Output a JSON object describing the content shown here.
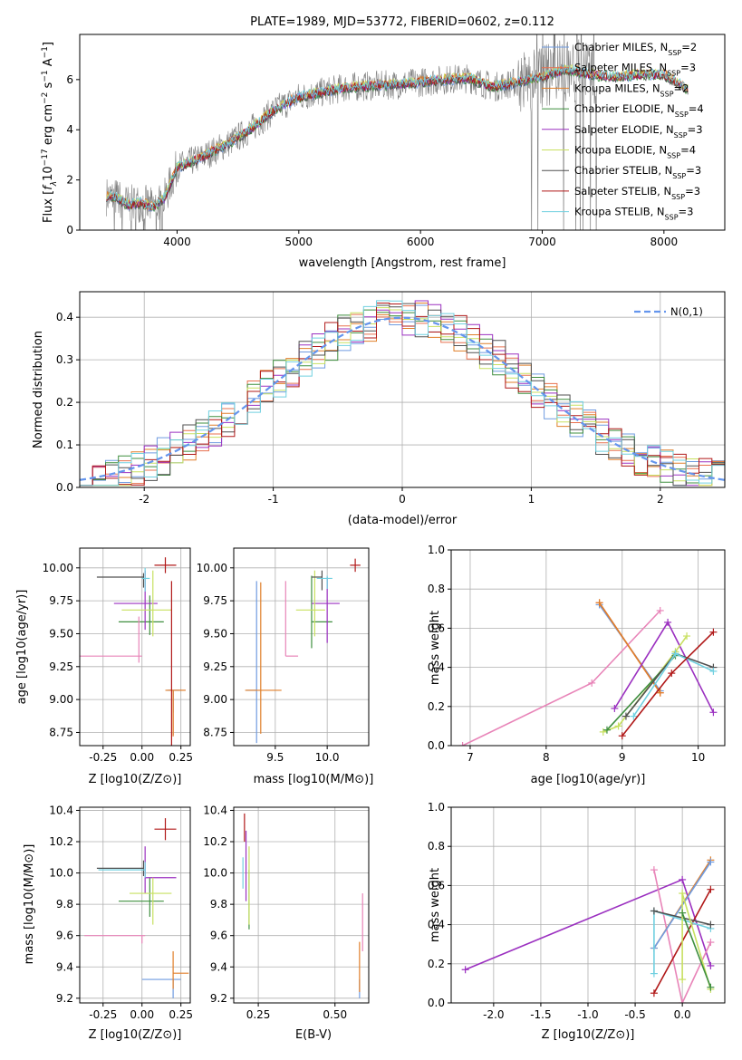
{
  "title": "PLATE=1989, MJD=53772, FIBERID=0602, z=0.112",
  "colors": {
    "Chabrier MILES": "#6f9be0",
    "Salpeter MILES": "#e8704f",
    "Kroupa MILES": "#e07f2a",
    "Chabrier ELODIE": "#3f8f3f",
    "Salpeter ELODIE": "#9b30c0",
    "Kroupa ELODIE": "#c8e060",
    "Chabrier STELIB": "#505050",
    "Salpeter STELIB": "#b01818",
    "Kroupa STELIB": "#70d0e0",
    "data": "#7f7f7f",
    "pink": "#e884b8",
    "gaussian": "#6495ed"
  },
  "chart_data": [
    {
      "id": "spectrum",
      "type": "line",
      "title": "PLATE=1989, MJD=53772, FIBERID=0602, z=0.112",
      "xlabel": "wavelength [Angstrom, rest frame]",
      "ylabel": "Flux [f_λ 10^-17 erg cm^-2 s^-1 A^-1]",
      "xlim": [
        3200,
        8500
      ],
      "ylim": [
        0,
        7.8
      ],
      "xticks": [
        4000,
        5000,
        6000,
        7000,
        8000
      ],
      "yticks": [
        0,
        2,
        4,
        6
      ],
      "legend_position": "right",
      "legend": [
        "Chabrier MILES, N_SSP=2",
        "Salpeter MILES, N_SSP=3",
        "Kroupa MILES, N_SSP=2",
        "Chabrier ELODIE, N_SSP=4",
        "Salpeter ELODIE, N_SSP=3",
        "Kroupa ELODIE, N_SSP=4",
        "Chabrier STELIB, N_SSP=3",
        "Salpeter STELIB, N_SSP=3",
        "Kroupa STELIB, N_SSP=3"
      ],
      "continuum_knots": {
        "x": [
          3420,
          3500,
          3600,
          3700,
          3800,
          3900,
          4000,
          4200,
          4400,
          4600,
          4800,
          5000,
          5200,
          5400,
          5600,
          5800,
          6000,
          6200,
          6400,
          6600,
          6800,
          7000,
          7200,
          7400,
          7600,
          7800,
          8000,
          8200
        ],
        "y": [
          1.35,
          1.3,
          1.0,
          1.1,
          0.9,
          1.3,
          2.5,
          2.9,
          3.4,
          4.0,
          4.8,
          5.3,
          5.5,
          5.7,
          5.75,
          5.8,
          5.9,
          6.0,
          6.05,
          5.7,
          5.9,
          6.1,
          6.4,
          6.2,
          6.1,
          6.2,
          6.2,
          5.6
        ]
      }
    },
    {
      "id": "residual-histogram",
      "type": "histogram",
      "xlabel": "(data-model)/error",
      "ylabel": "Normed distribution",
      "xlim": [
        -2.5,
        2.5
      ],
      "ylim": [
        0,
        0.46
      ],
      "xticks": [
        -2,
        -1,
        0,
        1,
        2
      ],
      "yticks": [
        0.0,
        0.1,
        0.2,
        0.3,
        0.4
      ],
      "reference_curve": "N(0,1)",
      "legend_position": "top-right",
      "bin_width": 0.1,
      "bins_from": -2.5
    },
    {
      "id": "age-vs-Z",
      "type": "scatter",
      "xlabel": "Z [log10(Z/Z⊙)]",
      "ylabel": "age [log10(age/yr)]",
      "xlim": [
        -0.4,
        0.31
      ],
      "ylim": [
        8.65,
        10.15
      ],
      "xticks": [
        -0.25,
        0.0,
        0.25
      ],
      "yticks": [
        8.75,
        9.0,
        9.25,
        9.5,
        9.75,
        10.0
      ],
      "points": [
        {
          "name": "Chabrier MILES",
          "x": 0.2,
          "y": 9.07,
          "xerr": [
            0.04,
            0.04
          ],
          "yerr": [
            0.17,
            0.0
          ]
        },
        {
          "name": "Salpeter MILES",
          "x": 0.2,
          "y": 9.07,
          "xerr": [
            0.03,
            0.08
          ],
          "yerr": [
            0.34,
            0.0
          ]
        },
        {
          "name": "Kroupa MILES",
          "x": 0.2,
          "y": 9.07,
          "xerr": [
            0.05,
            0.08
          ],
          "yerr": [
            0.35,
            0.0
          ]
        },
        {
          "name": "Chabrier ELODIE",
          "x": 0.05,
          "y": 9.59,
          "xerr": [
            0.2,
            0.09
          ],
          "yerr": [
            0.1,
            0.2
          ]
        },
        {
          "name": "Salpeter ELODIE",
          "x": 0.02,
          "y": 9.73,
          "xerr": [
            0.2,
            0.08
          ],
          "yerr": [
            0.2,
            0.25
          ]
        },
        {
          "name": "Kroupa ELODIE",
          "x": 0.07,
          "y": 9.68,
          "xerr": [
            0.2,
            0.12
          ],
          "yerr": [
            0.2,
            0.3
          ]
        },
        {
          "name": "Chabrier STELIB",
          "x": 0.01,
          "y": 9.93,
          "xerr": [
            0.3,
            0.0
          ],
          "yerr": [
            0.08,
            0.03
          ]
        },
        {
          "name": "Salpeter STELIB",
          "x": 0.19,
          "y": 9.07,
          "xerr": [
            0.0,
            0.0
          ],
          "yerr": [
            0.42,
            0.83
          ]
        },
        {
          "name": "Kroupa STELIB",
          "x": 0.02,
          "y": 9.92,
          "xerr": [
            0.02,
            0.03
          ],
          "yerr": [
            0.1,
            0.08
          ]
        },
        {
          "name": "pink",
          "x": -0.02,
          "y": 9.33,
          "xerr": [
            0.38,
            0.02
          ],
          "yerr": [
            0.05,
            0.3
          ]
        },
        {
          "name": "Salpeter STELIB",
          "x": 0.15,
          "y": 10.02,
          "xerr": [
            0.07,
            0.07
          ],
          "yerr": [
            0.06,
            0.06
          ]
        }
      ]
    },
    {
      "id": "age-vs-mass",
      "type": "scatter",
      "xlabel": "mass [log10(M/M⊙)]",
      "xlim": [
        9.1,
        10.4
      ],
      "ylim": [
        8.65,
        10.15
      ],
      "xticks": [
        9.5,
        10.0
      ],
      "yticks": [
        8.75,
        9.0,
        9.25,
        9.5,
        9.75,
        10.0
      ],
      "points": [
        {
          "name": "Chabrier MILES",
          "x": 9.32,
          "y": 9.07,
          "xerr": [
            0.1,
            0.0
          ],
          "yerr": [
            0.4,
            0.83
          ]
        },
        {
          "name": "Kroupa MILES",
          "x": 9.36,
          "y": 9.07,
          "xerr": [
            0.15,
            0.2
          ],
          "yerr": [
            0.33,
            0.82
          ]
        },
        {
          "name": "Chabrier ELODIE",
          "x": 9.85,
          "y": 9.59,
          "xerr": [
            0.0,
            0.2
          ],
          "yerr": [
            0.2,
            0.35
          ]
        },
        {
          "name": "Salpeter ELODIE",
          "x": 10.0,
          "y": 9.73,
          "xerr": [
            0.15,
            0.12
          ],
          "yerr": [
            0.3,
            0.2
          ]
        },
        {
          "name": "Kroupa ELODIE",
          "x": 9.88,
          "y": 9.68,
          "xerr": [
            0.18,
            0.1
          ],
          "yerr": [
            0.2,
            0.3
          ]
        },
        {
          "name": "Chabrier STELIB",
          "x": 9.95,
          "y": 9.93,
          "xerr": [
            0.1,
            0.0
          ],
          "yerr": [
            0.1,
            0.05
          ]
        },
        {
          "name": "Kroupa STELIB",
          "x": 10.0,
          "y": 9.92,
          "xerr": [
            0.1,
            0.05
          ],
          "yerr": [
            0.08,
            0.02
          ]
        },
        {
          "name": "pink",
          "x": 9.6,
          "y": 9.33,
          "xerr": [
            0.0,
            0.12
          ],
          "yerr": [
            0.0,
            0.57
          ]
        },
        {
          "name": "Salpeter STELIB",
          "x": 10.27,
          "y": 10.02,
          "xerr": [
            0.05,
            0.05
          ],
          "yerr": [
            0.05,
            0.05
          ]
        }
      ]
    },
    {
      "id": "weight-vs-age",
      "type": "line",
      "xlabel": "age [log10(age/yr)]",
      "ylabel": "mass weight",
      "xlim": [
        6.75,
        10.35
      ],
      "ylim": [
        0,
        1.0
      ],
      "xticks": [
        7,
        8,
        9,
        10
      ],
      "yticks": [
        0.0,
        0.2,
        0.4,
        0.6,
        0.8,
        1.0
      ],
      "series": [
        {
          "name": "pink",
          "x": [
            6.9,
            8.6,
            9.5
          ],
          "y": [
            0.0,
            0.32,
            0.69
          ]
        },
        {
          "name": "Chabrier MILES",
          "x": [
            8.7,
            9.5
          ],
          "y": [
            0.72,
            0.28
          ]
        },
        {
          "name": "Salpeter MILES",
          "x": [
            8.7,
            9.5
          ],
          "y": [
            0.73,
            0.27
          ]
        },
        {
          "name": "Kroupa MILES",
          "x": [
            8.7,
            9.5
          ],
          "y": [
            0.73,
            0.27
          ]
        },
        {
          "name": "Salpeter ELODIE",
          "x": [
            8.9,
            9.6,
            10.2
          ],
          "y": [
            0.19,
            0.63,
            0.17
          ]
        },
        {
          "name": "Kroupa ELODIE",
          "x": [
            8.75,
            8.95,
            9.7,
            9.85
          ],
          "y": [
            0.07,
            0.1,
            0.48,
            0.56
          ]
        },
        {
          "name": "Chabrier ELODIE",
          "x": [
            8.8,
            9.7
          ],
          "y": [
            0.08,
            0.46
          ]
        },
        {
          "name": "Chabrier STELIB",
          "x": [
            9.05,
            9.7,
            10.2
          ],
          "y": [
            0.15,
            0.47,
            0.4
          ]
        },
        {
          "name": "Kroupa STELIB",
          "x": [
            9.15,
            9.7,
            10.2
          ],
          "y": [
            0.15,
            0.47,
            0.38
          ]
        },
        {
          "name": "Salpeter STELIB",
          "x": [
            9.0,
            9.65,
            10.2
          ],
          "y": [
            0.05,
            0.37,
            0.58
          ]
        }
      ]
    },
    {
      "id": "mass-vs-Z",
      "type": "scatter",
      "xlabel": "Z [log10(Z/Z⊙)]",
      "ylabel": "mass [log10(M/M⊙)]",
      "xlim": [
        -0.4,
        0.31
      ],
      "ylim": [
        9.17,
        10.42
      ],
      "xticks": [
        -0.25,
        0.0,
        0.25
      ],
      "yticks": [
        9.2,
        9.4,
        9.6,
        9.8,
        10.0,
        10.2,
        10.4
      ],
      "points": [
        {
          "name": "Chabrier MILES",
          "x": 0.2,
          "y": 9.32,
          "xerr": [
            0.2,
            0.05
          ],
          "yerr": [
            0.12,
            0.0
          ]
        },
        {
          "name": "Kroupa MILES",
          "x": 0.2,
          "y": 9.36,
          "xerr": [
            0.0,
            0.1
          ],
          "yerr": [
            0.1,
            0.14
          ]
        },
        {
          "name": "Chabrier ELODIE",
          "x": 0.05,
          "y": 9.82,
          "xerr": [
            0.2,
            0.09
          ],
          "yerr": [
            0.1,
            0.15
          ]
        },
        {
          "name": "Salpeter ELODIE",
          "x": 0.02,
          "y": 9.97,
          "xerr": [
            0.0,
            0.2
          ],
          "yerr": [
            0.1,
            0.2
          ]
        },
        {
          "name": "Kroupa ELODIE",
          "x": 0.07,
          "y": 9.87,
          "xerr": [
            0.15,
            0.12
          ],
          "yerr": [
            0.2,
            0.1
          ]
        },
        {
          "name": "Chabrier STELIB",
          "x": 0.01,
          "y": 10.03,
          "xerr": [
            0.3,
            0.0
          ],
          "yerr": [
            0.05,
            0.05
          ]
        },
        {
          "name": "Kroupa STELIB",
          "x": 0.02,
          "y": 10.02,
          "xerr": [
            0.3,
            0.0
          ],
          "yerr": [
            0.05,
            0.05
          ]
        },
        {
          "name": "pink",
          "x": 0.0,
          "y": 9.6,
          "xerr": [
            0.37,
            0.02
          ],
          "yerr": [
            0.05,
            0.0
          ]
        },
        {
          "name": "Salpeter STELIB",
          "x": 0.15,
          "y": 10.28,
          "xerr": [
            0.07,
            0.07
          ],
          "yerr": [
            0.07,
            0.07
          ]
        }
      ]
    },
    {
      "id": "mass-vs-ebv",
      "type": "scatter",
      "xlabel": "E(B-V)",
      "xlim": [
        0.17,
        0.61
      ],
      "ylim": [
        9.17,
        10.42
      ],
      "xticks": [
        0.25,
        0.5
      ],
      "yticks": [
        9.2,
        9.4,
        9.6,
        9.8,
        10.0,
        10.2,
        10.4
      ],
      "points": [
        {
          "name": "Chabrier MILES",
          "x": 0.58,
          "y": 9.32,
          "xerr": [
            0,
            0
          ],
          "yerr": [
            0.12,
            0.0
          ]
        },
        {
          "name": "Kroupa MILES",
          "x": 0.58,
          "y": 9.36,
          "xerr": [
            0,
            0
          ],
          "yerr": [
            0.12,
            0.2
          ]
        },
        {
          "name": "pink",
          "x": 0.59,
          "y": 9.6,
          "xerr": [
            0,
            0
          ],
          "yerr": [
            0.1,
            0.27
          ]
        },
        {
          "name": "Kroupa STELIB",
          "x": 0.2,
          "y": 10.0,
          "xerr": [
            0,
            0
          ],
          "yerr": [
            0.1,
            0.1
          ]
        },
        {
          "name": "Salpeter STELIB",
          "x": 0.205,
          "y": 10.28,
          "xerr": [
            0,
            0
          ],
          "yerr": [
            0.08,
            0.1
          ]
        },
        {
          "name": "Chabrier ELODIE",
          "x": 0.22,
          "y": 9.82,
          "xerr": [
            0,
            0
          ],
          "yerr": [
            0.18,
            0.2
          ]
        },
        {
          "name": "Kroupa ELODIE",
          "x": 0.22,
          "y": 9.87,
          "xerr": [
            0,
            0
          ],
          "yerr": [
            0.2,
            0.3
          ]
        },
        {
          "name": "Salpeter ELODIE",
          "x": 0.21,
          "y": 9.97,
          "xerr": [
            0,
            0
          ],
          "yerr": [
            0.15,
            0.3
          ]
        }
      ]
    },
    {
      "id": "weight-vs-Z",
      "type": "line",
      "xlabel": "Z [log10(Z/Z⊙)]",
      "ylabel": "mass weight",
      "xlim": [
        -2.45,
        0.45
      ],
      "ylim": [
        0,
        1.0
      ],
      "xticks": [
        -2.0,
        -1.5,
        -1.0,
        -0.5,
        0.0
      ],
      "yticks": [
        0.0,
        0.2,
        0.4,
        0.6,
        0.8,
        1.0
      ],
      "series": [
        {
          "name": "Salpeter ELODIE",
          "x": [
            -2.3,
            0.0,
            0.3
          ],
          "y": [
            0.17,
            0.63,
            0.19
          ]
        },
        {
          "name": "pink",
          "x": [
            -0.3,
            0.0,
            0.3
          ],
          "y": [
            0.68,
            0.0,
            0.31
          ]
        },
        {
          "name": "Kroupa MILES",
          "x": [
            -0.3,
            0.3
          ],
          "y": [
            0.28,
            0.73
          ]
        },
        {
          "name": "Chabrier MILES",
          "x": [
            -0.3,
            0.3
          ],
          "y": [
            0.28,
            0.72
          ]
        },
        {
          "name": "Salpeter STELIB",
          "x": [
            -0.3,
            0.3
          ],
          "y": [
            0.05,
            0.58
          ]
        },
        {
          "name": "Kroupa STELIB",
          "x": [
            -0.3,
            -0.3,
            0.3
          ],
          "y": [
            0.15,
            0.47,
            0.38
          ]
        },
        {
          "name": "Chabrier STELIB",
          "x": [
            -0.3,
            0.3
          ],
          "y": [
            0.47,
            0.4
          ]
        },
        {
          "name": "Kroupa ELODIE",
          "x": [
            -0.0,
            0.0,
            0.3
          ],
          "y": [
            0.12,
            0.56,
            0.07
          ]
        },
        {
          "name": "Chabrier ELODIE",
          "x": [
            0.0,
            0.3
          ],
          "y": [
            0.46,
            0.08
          ]
        }
      ]
    }
  ],
  "labels": {
    "p1_x": "wavelength [Angstrom, rest frame]",
    "p2_x": "(data-model)/error",
    "p2_y": "Normed distribution",
    "p2_legend": "N(0,1)",
    "p3_y": "age  [log10(age/yr)]",
    "p3_x": "Z [log10(Z/Z⊙)]",
    "p4_x": "mass [log10(M/M⊙)]",
    "p5_x": "age  [log10(age/yr)]",
    "p5_y": "mass weight",
    "p6_x": "Z [log10(Z/Z⊙)]",
    "p6_y": "mass [log10(M/M⊙)]",
    "p7_x": "E(B-V)",
    "p8_x": "Z [log10(Z/Z⊙)]",
    "p8_y": "mass weight"
  }
}
